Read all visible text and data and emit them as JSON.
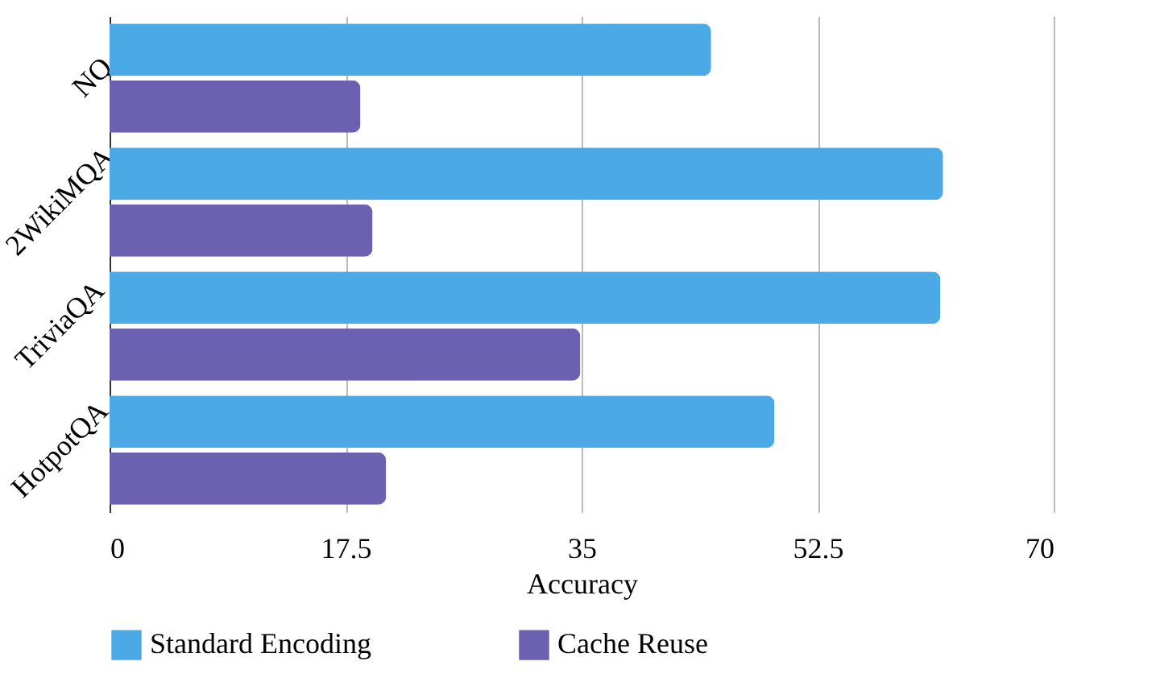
{
  "chart_data": {
    "type": "bar",
    "orientation": "horizontal",
    "xlabel": "Accuracy",
    "categories": [
      "NQ",
      "2WikiMQA",
      "TriviaQA",
      "HotpotQA"
    ],
    "series": [
      {
        "name": "Standard Encoding",
        "color": "#4ba9e6",
        "values": [
          44.6,
          61.8,
          61.6,
          49.3
        ]
      },
      {
        "name": "Cache Reuse",
        "color": "#6b61b0",
        "values": [
          18.6,
          19.5,
          34.9,
          20.5
        ]
      }
    ],
    "xlim": [
      0,
      70
    ],
    "xticks": [
      0,
      17.5,
      35,
      52.5,
      70
    ],
    "grid": "x",
    "legend": "bottom"
  }
}
